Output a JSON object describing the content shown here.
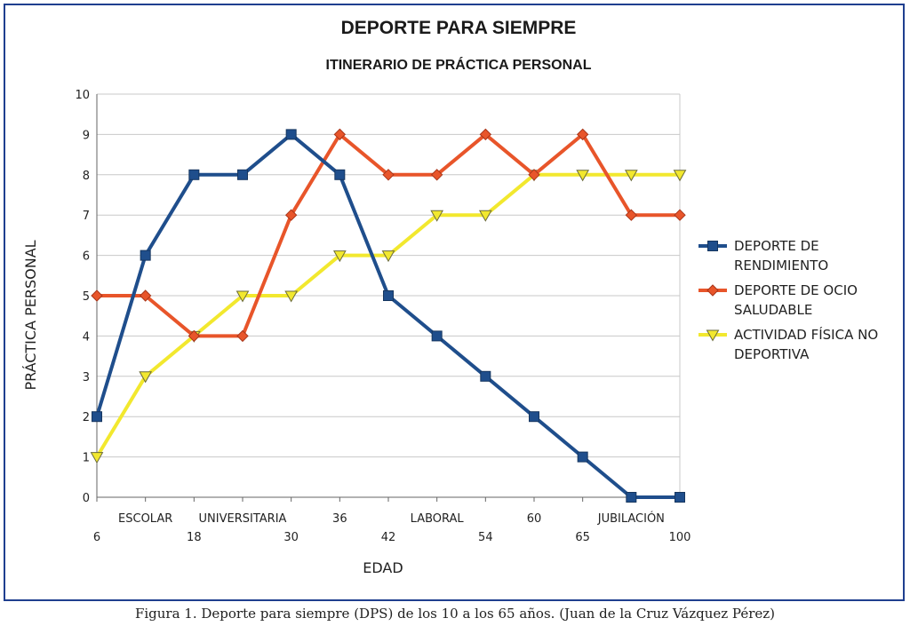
{
  "chart_data": {
    "type": "line",
    "title": "DEPORTE PARA SIEMPRE",
    "subtitle": "ITINERARIO DE PRÁCTICA PERSONAL",
    "xlabel": "EDAD",
    "ylabel": "PRÁCTICA PERSONAL",
    "ylim": [
      0,
      10
    ],
    "yticks": [
      0,
      1,
      2,
      3,
      4,
      5,
      6,
      7,
      8,
      9,
      10
    ],
    "grid": true,
    "legend_position": "right",
    "x_positions": 13,
    "age_labels": [
      {
        "pos": 0,
        "text": "6"
      },
      {
        "pos": 2,
        "text": "18"
      },
      {
        "pos": 4,
        "text": "30"
      },
      {
        "pos": 6,
        "text": "42"
      },
      {
        "pos": 8,
        "text": "54"
      },
      {
        "pos": 10,
        "text": "65"
      },
      {
        "pos": 12,
        "text": "100"
      }
    ],
    "stage_labels": [
      {
        "pos": 1,
        "text": "ESCOLAR"
      },
      {
        "pos": 3,
        "text": "UNIVERSITARIA"
      },
      {
        "pos": 5,
        "text": "36"
      },
      {
        "pos": 7,
        "text": "LABORAL"
      },
      {
        "pos": 9,
        "text": "60"
      },
      {
        "pos": 11,
        "text": "JUBILACIÓN"
      }
    ],
    "series": [
      {
        "name": "DEPORTE DE RENDIMIENTO",
        "legend_lines": [
          "DEPORTE DE",
          "RENDIMIENTO"
        ],
        "color": "#1f4e8c",
        "marker": "square",
        "values": [
          2,
          6,
          8,
          8,
          9,
          8,
          5,
          4,
          3,
          2,
          1,
          0,
          0
        ]
      },
      {
        "name": "DEPORTE DE OCIO SALUDABLE",
        "legend_lines": [
          "DEPORTE DE OCIO",
          "SALUDABLE"
        ],
        "color": "#e8552a",
        "marker": "diamond",
        "values": [
          5,
          5,
          4,
          4,
          7,
          9,
          8,
          8,
          9,
          8,
          9,
          7,
          7
        ]
      },
      {
        "name": "ACTIVIDAD FÍSICA NO DEPORTIVA",
        "legend_lines": [
          "ACTIVIDAD FÍSICA NO",
          "DEPORTIVA"
        ],
        "color": "#f2e82e",
        "marker": "triangle",
        "values": [
          1,
          3,
          4,
          5,
          5,
          6,
          6,
          7,
          7,
          8,
          8,
          8,
          8
        ]
      }
    ]
  },
  "caption": "Figura 1. Deporte para siempre (DPS) de los 10 a los 65 años. (Juan de la Cruz Vázquez Pérez)"
}
